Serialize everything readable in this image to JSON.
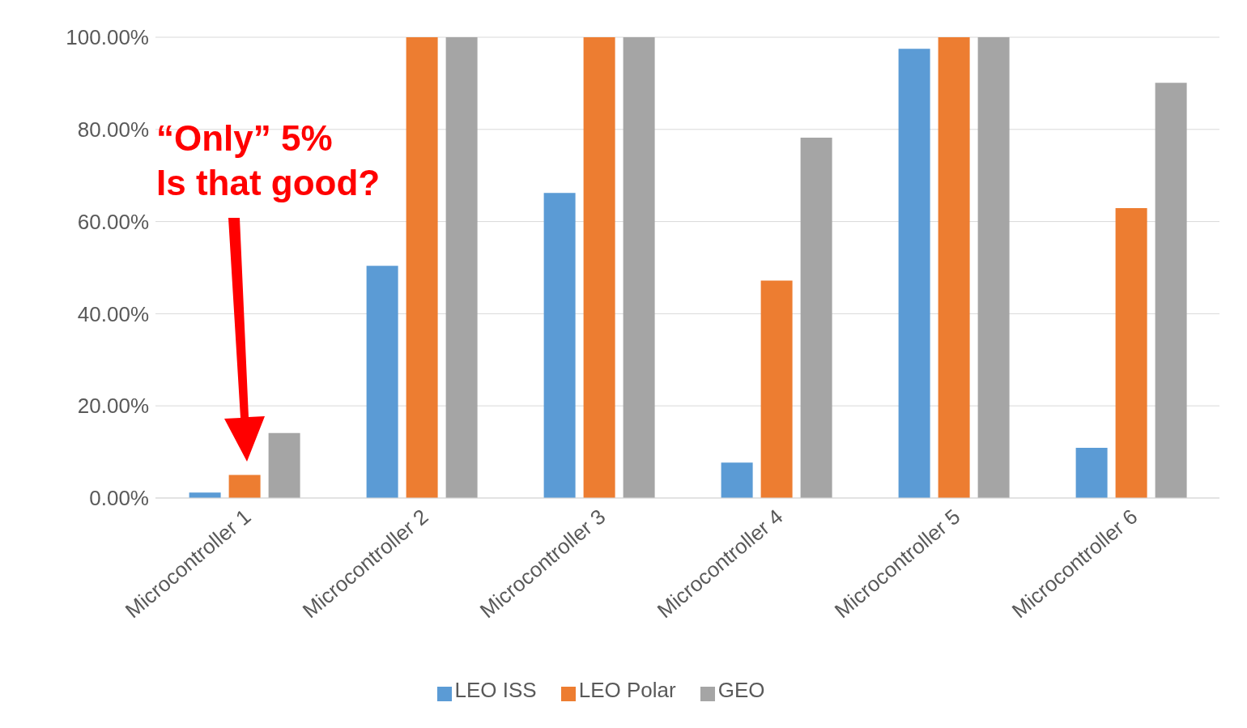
{
  "chart_data": {
    "type": "bar",
    "categories": [
      "Microcontroller 1",
      "Microcontroller 2",
      "Microcontroller 3",
      "Microcontroller 4",
      "Microcontroller 5",
      "Microcontroller 6"
    ],
    "series": [
      {
        "name": "LEO ISS",
        "color": "#5b9bd5",
        "values": [
          1.2,
          50.4,
          66.2,
          7.7,
          97.5,
          10.9
        ]
      },
      {
        "name": "LEO Polar",
        "color": "#ed7d31",
        "values": [
          5,
          100,
          100,
          47.2,
          100,
          62.9
        ]
      },
      {
        "name": "GEO",
        "color": "#a5a5a5",
        "values": [
          14.1,
          100,
          100,
          78.2,
          100,
          90.1
        ]
      }
    ],
    "ylim": [
      0,
      100
    ],
    "yticks": [
      {
        "value": 0,
        "label": "0.00%"
      },
      {
        "value": 20,
        "label": "20.00%"
      },
      {
        "value": 40,
        "label": "40.00%"
      },
      {
        "value": 60,
        "label": "60.00%"
      },
      {
        "value": 80,
        "label": "80.00%"
      },
      {
        "value": 100,
        "label": "100.00%"
      }
    ],
    "grid": "y",
    "legend": "bottom",
    "annotations": [
      "“Only” 5%\nIs that good?"
    ]
  }
}
